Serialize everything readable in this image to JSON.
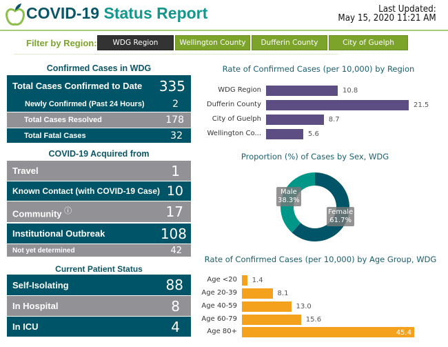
{
  "header": {
    "title_part1": "COVID-19",
    "title_part2": "Status Report",
    "updated_label": "Last Updated:",
    "updated_value": "May 15, 2020 11:21 AM"
  },
  "filter": {
    "label": "Filter by Region:",
    "options": [
      "WDG Region",
      "Wellington County",
      "Dufferin County",
      "City of Guelph"
    ],
    "selected": "WDG Region"
  },
  "confirmed": {
    "title": "Confirmed Cases in WDG",
    "rows": [
      {
        "label": "Total Cases Confirmed to Date",
        "value": "335"
      },
      {
        "label": "Newly Confirmed (Past 24 Hours)",
        "value": "2"
      },
      {
        "label": "Total Cases Resolved",
        "value": "178"
      },
      {
        "label": "Total Fatal Cases",
        "value": "32"
      }
    ]
  },
  "acquired": {
    "title": "COVID-19 Acquired from",
    "rows": [
      {
        "label": "Travel",
        "value": "1"
      },
      {
        "label": "Known Contact (with COVID-19 Case)",
        "value": "10"
      },
      {
        "label": "Community",
        "value": "17"
      },
      {
        "label": "Institutional Outbreak",
        "value": "108"
      },
      {
        "label": "Not yet determined",
        "value": "42"
      }
    ]
  },
  "patient": {
    "title": "Current Patient Status",
    "rows": [
      {
        "label": "Self-Isolating",
        "value": "88"
      },
      {
        "label": "In Hospital",
        "value": "8"
      },
      {
        "label": "In ICU",
        "value": "4"
      }
    ]
  },
  "colors": {
    "teal": "#005467",
    "grey": "#929196",
    "green": "#7ca32a",
    "purple": "#5c4d82",
    "orange": "#f4a21d",
    "male": "#009688"
  },
  "chart_data": [
    {
      "type": "bar",
      "orientation": "horizontal",
      "title": "Rate of Confirmed Cases (per 10,000) by Region",
      "categories": [
        "WDG Region",
        "Dufferin County",
        "City of Guelph",
        "Wellington Co..."
      ],
      "values": [
        10.8,
        21.5,
        8.7,
        5.6
      ],
      "value_labels": [
        "10.8",
        "21.5",
        "8.7",
        "5.6"
      ]
    },
    {
      "type": "pie",
      "donut": true,
      "title": "Proportion (%) of Cases by Sex, WDG",
      "categories": [
        "Female",
        "Male"
      ],
      "values": [
        61.7,
        38.3
      ],
      "value_labels": [
        "61.7%",
        "38.3%"
      ]
    },
    {
      "type": "bar",
      "orientation": "horizontal",
      "title": "Rate of Confirmed Cases (per 10,000) by Age Group, WDG",
      "categories": [
        "Age <20",
        "Age 20-39",
        "Age 40-59",
        "Age 60-79",
        "Age 80+"
      ],
      "values": [
        1.4,
        8.1,
        13.0,
        15.6,
        45.4
      ],
      "value_labels": [
        "1.4",
        "8.1",
        "13.0",
        "15.6",
        "45.4"
      ]
    }
  ]
}
